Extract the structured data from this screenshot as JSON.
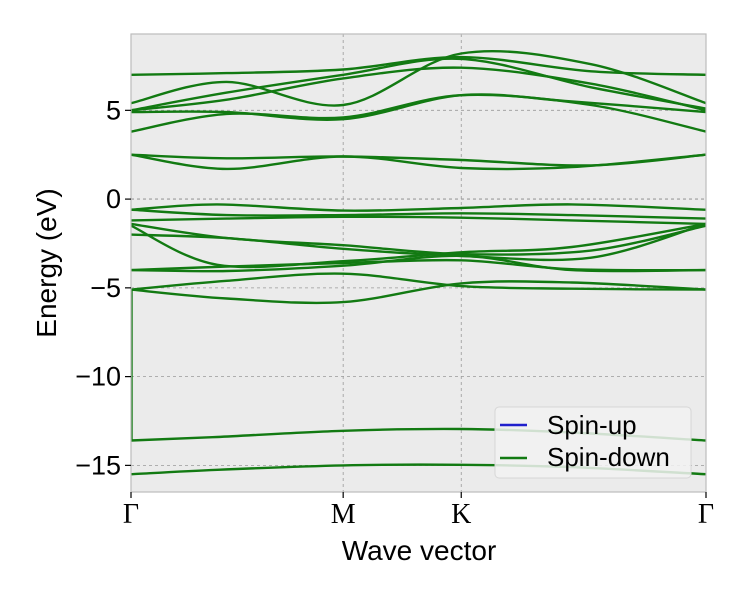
{
  "chart_data": {
    "type": "line",
    "xlabel": "Wave vector",
    "ylabel": "Energy (eV)",
    "ylim": [
      -16.5,
      9.3
    ],
    "yticks": [
      5,
      0,
      -5,
      -10,
      -15
    ],
    "ytick_labels": [
      "5",
      "0",
      "−5",
      "−10",
      "−15"
    ],
    "xlim": [
      0,
      3
    ],
    "xticks": [
      {
        "label": "Γ",
        "pos": 0
      },
      {
        "label": "M",
        "pos": 1.107
      },
      {
        "label": "K",
        "pos": 1.723
      },
      {
        "label": "Γ",
        "pos": 3
      }
    ],
    "grid": true,
    "legend": {
      "placement": "lower-right",
      "entries": [
        {
          "label": "Spin-up",
          "color": "#1f1fcc"
        },
        {
          "label": "Spin-down",
          "color": "#127a12"
        }
      ]
    },
    "colors": {
      "background": "#ebebeb",
      "spin_down": "#127a12",
      "spin_up": "#1f1fcc",
      "grid": "#9a9a9a",
      "spine": "#bcbcbc"
    },
    "series": [
      {
        "name": "Spin-down",
        "bands": [
          [
            [
              0,
              -15.5
            ],
            [
              0.45,
              -15.25
            ],
            [
              1.107,
              -15.0
            ],
            [
              1.723,
              -14.97
            ],
            [
              2.3,
              -15.1
            ],
            [
              3,
              -15.5
            ]
          ],
          [
            [
              0,
              -13.6
            ],
            [
              0.45,
              -13.4
            ],
            [
              1.107,
              -13.05
            ],
            [
              1.723,
              -12.95
            ],
            [
              2.3,
              -13.15
            ],
            [
              3,
              -13.6
            ]
          ],
          [
            [
              0,
              -5.1
            ],
            [
              0.5,
              -5.6
            ],
            [
              1.107,
              -5.8
            ],
            [
              1.723,
              -4.75
            ],
            [
              2.3,
              -4.7
            ],
            [
              3,
              -5.1
            ]
          ],
          [
            [
              0,
              -5.1
            ],
            [
              0.5,
              -4.6
            ],
            [
              1.107,
              -4.2
            ],
            [
              1.723,
              -4.9
            ],
            [
              2.3,
              -5.05
            ],
            [
              3,
              -5.1
            ]
          ],
          [
            [
              0,
              -4.0
            ],
            [
              0.5,
              -4.05
            ],
            [
              1.107,
              -3.75
            ],
            [
              1.723,
              -3.2
            ],
            [
              2.3,
              -4.0
            ],
            [
              3,
              -4.0
            ]
          ],
          [
            [
              0,
              -4.0
            ],
            [
              0.5,
              -3.8
            ],
            [
              1.107,
              -3.6
            ],
            [
              1.723,
              -3.45
            ],
            [
              2.3,
              -3.95
            ],
            [
              3,
              -4.0
            ]
          ],
          [
            [
              0,
              -2.0
            ],
            [
              0.5,
              -2.2
            ],
            [
              1.107,
              -2.8
            ],
            [
              1.723,
              -3.2
            ],
            [
              2.4,
              -3.3
            ],
            [
              3,
              -1.4
            ]
          ],
          [
            [
              0,
              -1.5
            ],
            [
              0.45,
              -3.7
            ],
            [
              1.107,
              -3.5
            ],
            [
              1.723,
              -3.0
            ],
            [
              2.3,
              -2.7
            ],
            [
              3,
              -1.4
            ]
          ],
          [
            [
              0,
              -1.4
            ],
            [
              0.5,
              -2.2
            ],
            [
              1.107,
              -2.6
            ],
            [
              1.723,
              -3.1
            ],
            [
              2.4,
              -2.9
            ],
            [
              3,
              -1.5
            ]
          ],
          [
            [
              0,
              -1.2
            ],
            [
              0.5,
              -1.1
            ],
            [
              1.107,
              -1.0
            ],
            [
              1.723,
              -1.05
            ],
            [
              2.3,
              -1.2
            ],
            [
              3,
              -1.4
            ]
          ],
          [
            [
              0,
              -0.6
            ],
            [
              0.5,
              -0.9
            ],
            [
              1.107,
              -0.9
            ],
            [
              1.723,
              -0.8
            ],
            [
              2.3,
              -0.9
            ],
            [
              3,
              -1.1
            ]
          ],
          [
            [
              0,
              -0.6
            ],
            [
              0.45,
              -0.3
            ],
            [
              1.107,
              -0.65
            ],
            [
              1.723,
              -0.5
            ],
            [
              2.3,
              -0.3
            ],
            [
              3,
              -0.6
            ]
          ],
          [
            [
              0,
              2.5
            ],
            [
              0.5,
              1.7
            ],
            [
              1.107,
              2.4
            ],
            [
              1.723,
              1.75
            ],
            [
              2.3,
              1.8
            ],
            [
              3,
              2.5
            ]
          ],
          [
            [
              0,
              2.5
            ],
            [
              0.5,
              2.3
            ],
            [
              1.107,
              2.4
            ],
            [
              1.723,
              2.2
            ],
            [
              2.4,
              1.9
            ],
            [
              3,
              2.5
            ]
          ],
          [
            [
              0,
              3.8
            ],
            [
              0.5,
              4.8
            ],
            [
              1.107,
              4.6
            ],
            [
              1.723,
              5.85
            ],
            [
              2.4,
              5.3
            ],
            [
              3,
              3.8
            ]
          ],
          [
            [
              0,
              4.9
            ],
            [
              0.5,
              4.9
            ],
            [
              1.107,
              4.5
            ],
            [
              1.723,
              5.85
            ],
            [
              2.3,
              5.5
            ],
            [
              3,
              4.9
            ]
          ],
          [
            [
              0,
              5.0
            ],
            [
              0.5,
              5.6
            ],
            [
              1.107,
              6.8
            ],
            [
              1.723,
              7.4
            ],
            [
              2.4,
              6.5
            ],
            [
              3,
              5.0
            ]
          ],
          [
            [
              0,
              5.0
            ],
            [
              0.5,
              6.0
            ],
            [
              1.107,
              7.0
            ],
            [
              1.723,
              7.9
            ],
            [
              2.4,
              6.3
            ],
            [
              3,
              5.1
            ]
          ],
          [
            [
              0,
              5.4
            ],
            [
              0.5,
              6.6
            ],
            [
              1.107,
              5.3
            ],
            [
              1.723,
              8.2
            ],
            [
              2.4,
              7.6
            ],
            [
              3,
              5.4
            ]
          ],
          [
            [
              0,
              7.0
            ],
            [
              0.5,
              7.1
            ],
            [
              1.107,
              7.3
            ],
            [
              1.723,
              8.0
            ],
            [
              2.4,
              7.2
            ],
            [
              3,
              7.0
            ]
          ]
        ]
      }
    ]
  }
}
